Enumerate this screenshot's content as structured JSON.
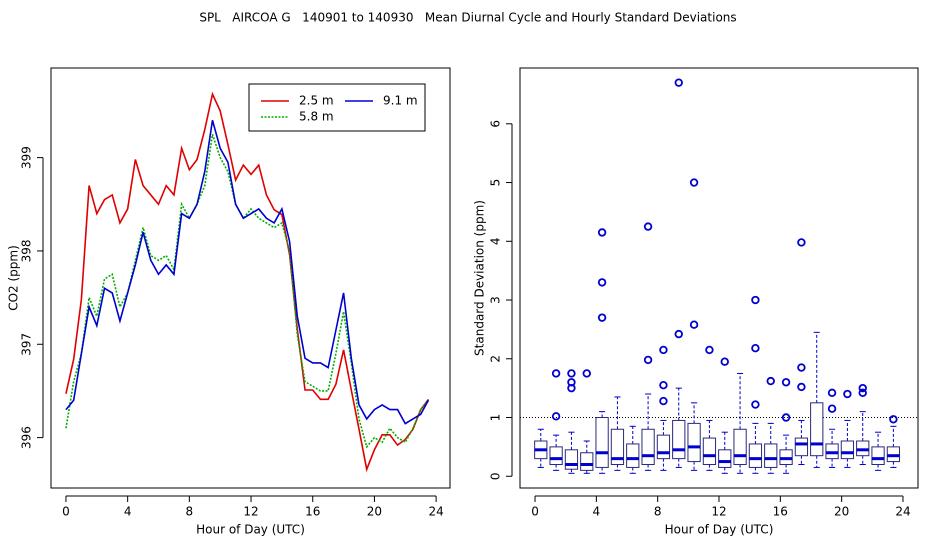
{
  "title": "SPL   AIRCOA G   140901 to 140930   Mean Diurnal Cycle and Hourly Standard Deviations",
  "chart_data": [
    {
      "type": "line",
      "x_label": "Hour of Day (UTC)",
      "y_label": "CO2 (ppm)",
      "xlim": [
        -0.97,
        24.9
      ],
      "ylim": [
        395.46,
        399.96
      ],
      "xticks": [
        0,
        4,
        8,
        12,
        16,
        20,
        24
      ],
      "yticks": [
        396,
        397,
        398,
        399
      ],
      "legend": "topright",
      "x": [
        0,
        0.5,
        1,
        1.5,
        2,
        2.5,
        3,
        3.5,
        4,
        4.5,
        5,
        5.5,
        6,
        6.5,
        7,
        7.5,
        8,
        8.5,
        9,
        9.5,
        10,
        10.5,
        11,
        11.5,
        12,
        12.5,
        13,
        13.5,
        14,
        14.5,
        15,
        15.5,
        16,
        16.5,
        17,
        17.5,
        18,
        18.5,
        19,
        19.5,
        20,
        20.5,
        21,
        21.5,
        22,
        22.5,
        23,
        23.5
      ],
      "series": [
        {
          "name": "2.5 m",
          "color": "#e00000",
          "dash": "solid",
          "values": [
            396.47,
            396.84,
            397.48,
            398.7,
            398.4,
            398.55,
            398.6,
            398.3,
            398.45,
            398.98,
            398.7,
            398.6,
            398.5,
            398.7,
            398.6,
            399.1,
            398.87,
            398.98,
            399.3,
            399.68,
            399.5,
            399.14,
            398.76,
            398.92,
            398.82,
            398.92,
            398.6,
            398.44,
            398.39,
            397.96,
            397.16,
            396.51,
            396.51,
            396.41,
            396.41,
            396.57,
            396.94,
            396.51,
            396.09,
            395.66,
            395.87,
            396.03,
            396.03,
            395.92,
            395.98,
            396.09,
            396.3,
            396.41
          ]
        },
        {
          "name": "5.8 m",
          "color": "#00b000",
          "dash": "dotted",
          "values": [
            396.1,
            396.6,
            396.9,
            397.5,
            397.3,
            397.7,
            397.75,
            397.4,
            397.55,
            397.9,
            398.25,
            397.95,
            397.9,
            397.95,
            397.8,
            398.5,
            398.35,
            398.5,
            398.7,
            399.25,
            399.0,
            398.85,
            398.5,
            398.35,
            398.45,
            398.35,
            398.3,
            398.25,
            398.3,
            398.0,
            397.1,
            396.6,
            396.55,
            396.5,
            396.5,
            396.9,
            397.35,
            396.8,
            396.2,
            395.9,
            396.0,
            395.95,
            396.1,
            396.0,
            395.95,
            396.1,
            396.3,
            396.4
          ]
        },
        {
          "name": "9.1 m",
          "color": "#0000d0",
          "dash": "solid",
          "values": [
            396.3,
            396.4,
            396.9,
            397.4,
            397.2,
            397.6,
            397.55,
            397.25,
            397.55,
            397.85,
            398.2,
            397.9,
            397.75,
            397.85,
            397.75,
            398.4,
            398.35,
            398.5,
            398.85,
            399.4,
            399.1,
            398.95,
            398.5,
            398.35,
            398.4,
            398.45,
            398.35,
            398.3,
            398.45,
            398.1,
            397.3,
            396.85,
            396.8,
            396.8,
            396.75,
            397.15,
            397.55,
            396.85,
            396.35,
            396.2,
            396.3,
            396.35,
            396.3,
            396.3,
            396.15,
            396.2,
            396.25,
            396.4
          ]
        }
      ]
    },
    {
      "type": "box",
      "x_label": "Hour of Day (UTC)",
      "y_label": "Standard Deviation (ppm)",
      "xlim": [
        -0.98,
        24.98
      ],
      "ylim": [
        -0.2,
        6.95
      ],
      "xticks": [
        0,
        4,
        8,
        12,
        16,
        20,
        24
      ],
      "yticks": [
        0,
        1,
        2,
        3,
        4,
        5,
        6
      ],
      "hline": 1,
      "color": "#0000d0",
      "x": [
        0.375,
        1.375,
        2.375,
        3.375,
        4.375,
        5.375,
        6.375,
        7.375,
        8.375,
        9.375,
        10.375,
        11.375,
        12.375,
        13.375,
        14.375,
        15.375,
        16.375,
        17.375,
        18.375,
        19.375,
        20.375,
        21.375,
        22.375,
        23.375
      ],
      "boxes": [
        {
          "low": 0.15,
          "q1": 0.3,
          "median": 0.45,
          "q3": 0.6,
          "high": 0.8,
          "outliers": []
        },
        {
          "low": 0.1,
          "q1": 0.2,
          "median": 0.3,
          "q3": 0.5,
          "high": 0.7,
          "outliers": [
            1.75,
            1.02
          ]
        },
        {
          "low": 0.05,
          "q1": 0.12,
          "median": 0.2,
          "q3": 0.45,
          "high": 0.75,
          "outliers": [
            1.75,
            1.6,
            1.5
          ]
        },
        {
          "low": 0.05,
          "q1": 0.1,
          "median": 0.2,
          "q3": 0.4,
          "high": 0.6,
          "outliers": [
            1.75
          ]
        },
        {
          "low": 0.05,
          "q1": 0.15,
          "median": 0.4,
          "q3": 1.0,
          "high": 1.1,
          "outliers": [
            4.15,
            3.3,
            2.7
          ]
        },
        {
          "low": 0.1,
          "q1": 0.2,
          "median": 0.3,
          "q3": 0.8,
          "high": 1.35,
          "outliers": []
        },
        {
          "low": 0.05,
          "q1": 0.15,
          "median": 0.3,
          "q3": 0.55,
          "high": 0.85,
          "outliers": []
        },
        {
          "low": 0.1,
          "q1": 0.2,
          "median": 0.35,
          "q3": 0.8,
          "high": 1.4,
          "outliers": [
            4.25,
            1.98
          ]
        },
        {
          "low": 0.1,
          "q1": 0.3,
          "median": 0.4,
          "q3": 0.7,
          "high": 0.95,
          "outliers": [
            2.15,
            1.55,
            1.28
          ]
        },
        {
          "low": 0.15,
          "q1": 0.3,
          "median": 0.45,
          "q3": 0.95,
          "high": 1.5,
          "outliers": [
            6.7,
            2.42
          ]
        },
        {
          "low": 0.1,
          "q1": 0.25,
          "median": 0.5,
          "q3": 0.9,
          "high": 1.25,
          "outliers": [
            5.0,
            2.58
          ]
        },
        {
          "low": 0.1,
          "q1": 0.2,
          "median": 0.35,
          "q3": 0.65,
          "high": 0.95,
          "outliers": [
            2.15
          ]
        },
        {
          "low": 0.05,
          "q1": 0.15,
          "median": 0.25,
          "q3": 0.45,
          "high": 0.75,
          "outliers": [
            1.95
          ]
        },
        {
          "low": 0.05,
          "q1": 0.2,
          "median": 0.35,
          "q3": 0.8,
          "high": 1.75,
          "outliers": []
        },
        {
          "low": 0.05,
          "q1": 0.15,
          "median": 0.3,
          "q3": 0.55,
          "high": 0.9,
          "outliers": [
            3.0,
            2.18,
            1.22
          ]
        },
        {
          "low": 0.05,
          "q1": 0.15,
          "median": 0.3,
          "q3": 0.55,
          "high": 0.9,
          "outliers": [
            1.62
          ]
        },
        {
          "low": 0.05,
          "q1": 0.2,
          "median": 0.3,
          "q3": 0.45,
          "high": 0.7,
          "outliers": [
            1.6,
            1.0
          ]
        },
        {
          "low": 0.2,
          "q1": 0.35,
          "median": 0.55,
          "q3": 0.65,
          "high": 0.95,
          "outliers": [
            3.98,
            1.85,
            1.52
          ]
        },
        {
          "low": 0.15,
          "q1": 0.35,
          "median": 0.55,
          "q3": 1.25,
          "high": 2.45,
          "outliers": []
        },
        {
          "low": 0.15,
          "q1": 0.3,
          "median": 0.4,
          "q3": 0.55,
          "high": 0.8,
          "outliers": [
            1.42,
            1.15
          ]
        },
        {
          "low": 0.15,
          "q1": 0.3,
          "median": 0.4,
          "q3": 0.6,
          "high": 0.95,
          "outliers": [
            1.4
          ]
        },
        {
          "low": 0.2,
          "q1": 0.35,
          "median": 0.45,
          "q3": 0.6,
          "high": 1.1,
          "outliers": [
            1.5,
            1.42
          ]
        },
        {
          "low": 0.1,
          "q1": 0.2,
          "median": 0.3,
          "q3": 0.5,
          "high": 0.75,
          "outliers": []
        },
        {
          "low": 0.15,
          "q1": 0.25,
          "median": 0.35,
          "q3": 0.5,
          "high": 0.85,
          "outliers": [
            0.97
          ]
        }
      ]
    }
  ]
}
